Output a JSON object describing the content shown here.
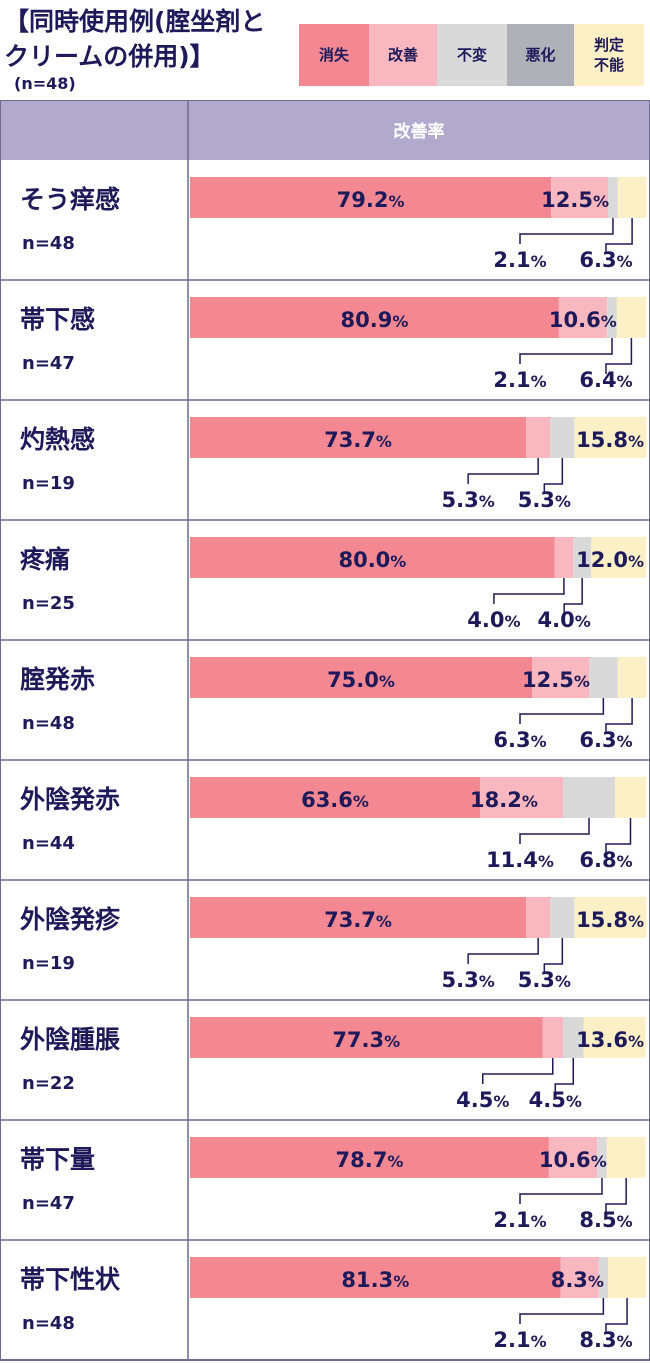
{
  "title": "【同時使用例(腟坐剤と\nクリームの併用)】",
  "subtitle": "(n=48)",
  "legend": [
    {
      "name": "消失",
      "color": "#f48892"
    },
    {
      "name": "改善",
      "color": "#f9b8bf"
    },
    {
      "name": "不変",
      "color": "#d9d9d9"
    },
    {
      "name": "悪化",
      "color": "#b0b0b8"
    },
    {
      "name": "判定\n不能",
      "color": "#fdf0c6"
    }
  ],
  "header_label": "改善率",
  "colors": {
    "header": "#b2aacc",
    "border": "#6f6a8f",
    "text": "#1e1a5a"
  },
  "chart_data": {
    "type": "bar",
    "stacked": true,
    "categories": [
      "そう痒感",
      "帯下感",
      "灼熱感",
      "疼痛",
      "腟発赤",
      "外陰発赤",
      "外陰発疹",
      "外陰腫脹",
      "帯下量",
      "帯下性状"
    ],
    "n_labels": [
      "n=48",
      "n=47",
      "n=19",
      "n=25",
      "n=48",
      "n=44",
      "n=19",
      "n=22",
      "n=47",
      "n=48"
    ],
    "series": [
      {
        "name": "消失",
        "values": [
          79.2,
          80.9,
          73.7,
          80.0,
          75.0,
          63.6,
          73.7,
          77.3,
          78.7,
          81.3
        ]
      },
      {
        "name": "改善",
        "values": [
          12.5,
          10.6,
          5.3,
          4.0,
          12.5,
          18.2,
          5.3,
          4.5,
          10.6,
          8.3
        ]
      },
      {
        "name": "不変",
        "values": [
          2.1,
          2.1,
          5.3,
          4.0,
          6.3,
          11.4,
          5.3,
          4.5,
          2.1,
          2.1
        ]
      },
      {
        "name": "悪化",
        "values": [
          0,
          0,
          0,
          0,
          0,
          0,
          0,
          0,
          0,
          0
        ]
      },
      {
        "name": "判定不能",
        "values": [
          6.3,
          6.4,
          15.8,
          12.0,
          6.3,
          6.8,
          15.8,
          13.6,
          8.5,
          8.3
        ]
      }
    ],
    "xlim": [
      0,
      100
    ]
  }
}
